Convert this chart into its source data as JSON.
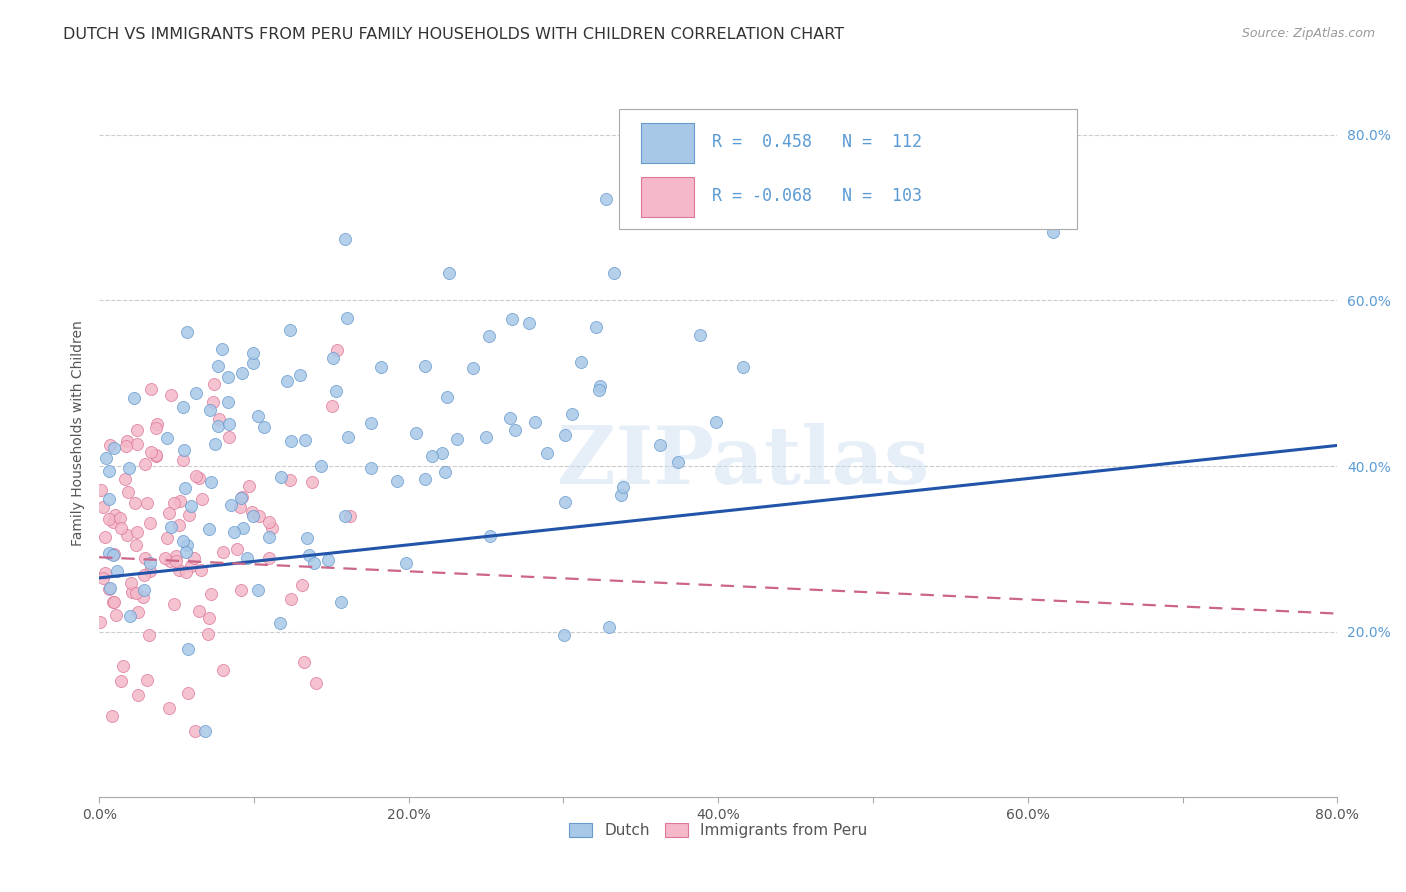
{
  "title": "DUTCH VS IMMIGRANTS FROM PERU FAMILY HOUSEHOLDS WITH CHILDREN CORRELATION CHART",
  "source": "Source: ZipAtlas.com",
  "ylabel": "Family Households with Children",
  "watermark": "ZIPatlas",
  "dutch_R": 0.458,
  "dutch_N": 112,
  "peru_R": -0.068,
  "peru_N": 103,
  "dutch_color": "#a8c8e8",
  "peru_color": "#f4b8c8",
  "dutch_edge_color": "#6699cc",
  "peru_edge_color": "#dd7799",
  "dutch_line_color": "#2255aa",
  "peru_line_color": "#cc6688",
  "xlim": [
    0.0,
    0.8
  ],
  "ylim": [
    0.0,
    0.88
  ],
  "xticks": [
    0.0,
    0.1,
    0.2,
    0.3,
    0.4,
    0.5,
    0.6,
    0.7,
    0.8
  ],
  "yticks": [
    0.2,
    0.4,
    0.6,
    0.8
  ],
  "ytick_labels": [
    "20.0%",
    "40.0%",
    "60.0%",
    "80.0%"
  ],
  "xtick_labels": [
    "0.0%",
    "",
    "20.0%",
    "",
    "40.0%",
    "",
    "60.0%",
    "",
    "80.0%"
  ],
  "legend_dutch_label": "Dutch",
  "legend_peru_label": "Immigrants from Peru",
  "background_color": "#ffffff",
  "grid_color": "#cccccc",
  "tick_color": "#5b9bd5",
  "legend_R_color": "#5b9bd5",
  "title_color": "#333333",
  "source_color": "#999999"
}
